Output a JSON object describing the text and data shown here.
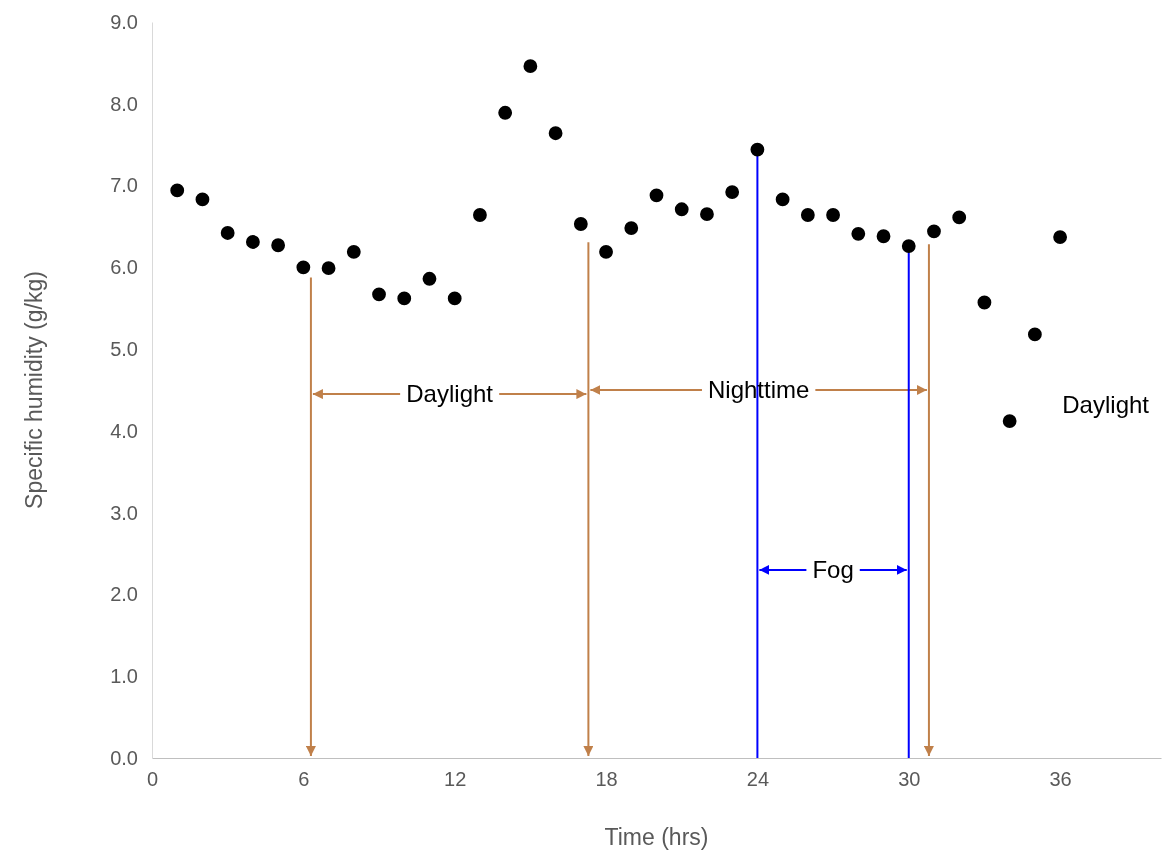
{
  "chart_data": {
    "type": "scatter",
    "xlabel": "Time (hrs)",
    "ylabel": "Specific humidity (g/kg)",
    "x": [
      1,
      2,
      3,
      4,
      5,
      6,
      7,
      8,
      9,
      10,
      11,
      12,
      13,
      14,
      15,
      16,
      17,
      18,
      19,
      20,
      21,
      22,
      23,
      24,
      25,
      26,
      27,
      28,
      29,
      30,
      31,
      32,
      33,
      34,
      35,
      36
    ],
    "series": [
      {
        "color": "#000000",
        "values": [
          6.94,
          6.83,
          6.42,
          6.31,
          6.27,
          6.0,
          5.99,
          6.19,
          5.67,
          5.62,
          5.86,
          5.62,
          6.64,
          7.89,
          8.46,
          7.64,
          6.53,
          6.19,
          6.48,
          6.88,
          6.71,
          6.65,
          6.92,
          7.44,
          6.83,
          6.64,
          6.64,
          6.41,
          6.38,
          6.26,
          6.44,
          6.61,
          5.57,
          4.12,
          5.18,
          6.37
        ]
      }
    ],
    "marker": "circle",
    "xlim": [
      0,
      40
    ],
    "xticks": [
      0,
      6,
      12,
      18,
      24,
      30,
      36
    ],
    "ylim": [
      0,
      9
    ],
    "yticks": [
      {
        "value": 0,
        "label": "0.0"
      },
      {
        "value": 1,
        "label": "1.0"
      },
      {
        "value": 2,
        "label": "2.0"
      },
      {
        "value": 3,
        "label": "3.0"
      },
      {
        "value": 4,
        "label": "4.0"
      },
      {
        "value": 5,
        "label": "5.0"
      },
      {
        "value": 6,
        "label": "6.0"
      },
      {
        "value": 7,
        "label": "7.0"
      },
      {
        "value": 8,
        "label": "8.0"
      },
      {
        "value": 9,
        "label": "9.0"
      }
    ],
    "grid": false,
    "ref_lines": [
      {
        "axis": "x",
        "value": 6.3,
        "color": "#c0804a"
      },
      {
        "axis": "x",
        "value": 17.3,
        "color": "#c0804a"
      },
      {
        "axis": "x",
        "value": 24,
        "color": "#0000ff"
      },
      {
        "axis": "x",
        "value": 30,
        "color": "#0000ff"
      },
      {
        "axis": "x",
        "value": 30.8,
        "color": "#c0804a"
      }
    ],
    "annotations": [
      {
        "text": "Daylight",
        "x": 6.3,
        "y": 4.45
      },
      {
        "text": "Nighttime",
        "x": 17.3,
        "y": 4.5
      },
      {
        "text": "Fog",
        "x": 24,
        "y": 2.3
      },
      "Daylight"
    ]
  }
}
